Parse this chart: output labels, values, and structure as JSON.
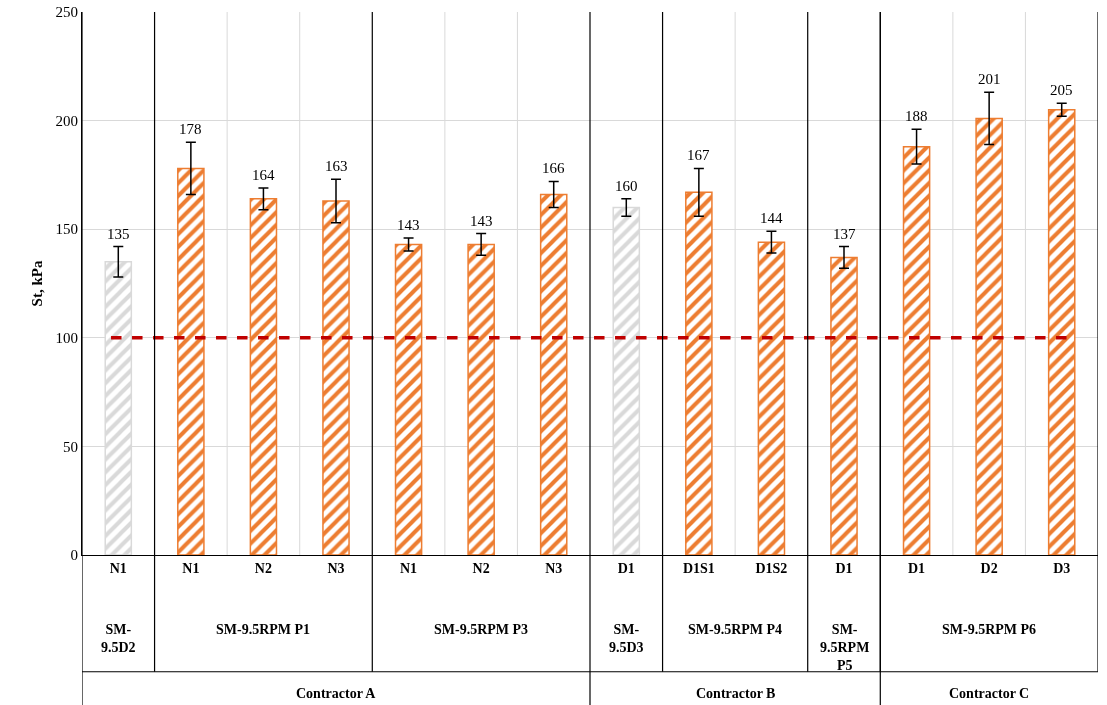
{
  "chart_data": {
    "type": "bar",
    "ylabel": "St, kPa",
    "categories": [
      "N1",
      "N1",
      "N2",
      "N3",
      "N1",
      "N2",
      "N3",
      "D1",
      "D1S1",
      "D1S2",
      "D1",
      "D1",
      "D2",
      "D3"
    ],
    "values": [
      135,
      178,
      164,
      163,
      143,
      143,
      166,
      160,
      167,
      144,
      137,
      188,
      201,
      205
    ],
    "errors": [
      7,
      12,
      5,
      10,
      3,
      5,
      6,
      4,
      11,
      5,
      5,
      8,
      12,
      3
    ],
    "colors": [
      "#d9d9d9",
      "#ed7d31",
      "#ed7d31",
      "#ed7d31",
      "#ed7d31",
      "#ed7d31",
      "#ed7d31",
      "#d9d9d9",
      "#ed7d31",
      "#ed7d31",
      "#ed7d31",
      "#ed7d31",
      "#ed7d31",
      "#ed7d31"
    ],
    "ylim": [
      0,
      250
    ],
    "yticks": [
      0,
      50,
      100,
      150,
      200,
      250
    ],
    "grid": true,
    "data_labels": true,
    "ref_lines": [
      {
        "axis": "y",
        "value": 100,
        "color": "#c00000",
        "line_style": "dashed"
      }
    ],
    "annotations": [
      "SM-9.5D2",
      "SM-9.5RPM P1",
      "SM-9.5RPM P3",
      "SM-9.5D3",
      "SM-9.5RPM P4",
      "SM-9.5RPM P5",
      "SM-9.5RPM P6",
      "Contractor A",
      "Contractor B",
      "Contractor C"
    ]
  }
}
